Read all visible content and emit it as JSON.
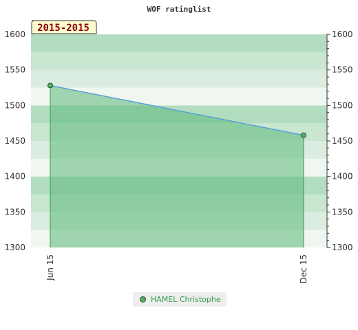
{
  "chart_data": {
    "type": "area",
    "title": "WOF ratinglist",
    "period_label": "2015-2015",
    "categories": [
      "Jun 15",
      "Dec 15"
    ],
    "series": [
      {
        "name": "HAMEL Christophe",
        "values": [
          1528,
          1458
        ]
      }
    ],
    "ylim": [
      1300,
      1600
    ],
    "yticks": [
      1300,
      1350,
      1400,
      1450,
      1500,
      1550,
      1600
    ],
    "grid": true,
    "legend_position": "bottom-center",
    "colors": {
      "line": "#5aa0d8",
      "fill": "#5cb878",
      "marker": "#56b06a",
      "marker_stroke": "#1e4e2a",
      "legend_text": "#2e9c4a",
      "period_bg": "#fffccf",
      "period_text": "#8b0000"
    }
  }
}
